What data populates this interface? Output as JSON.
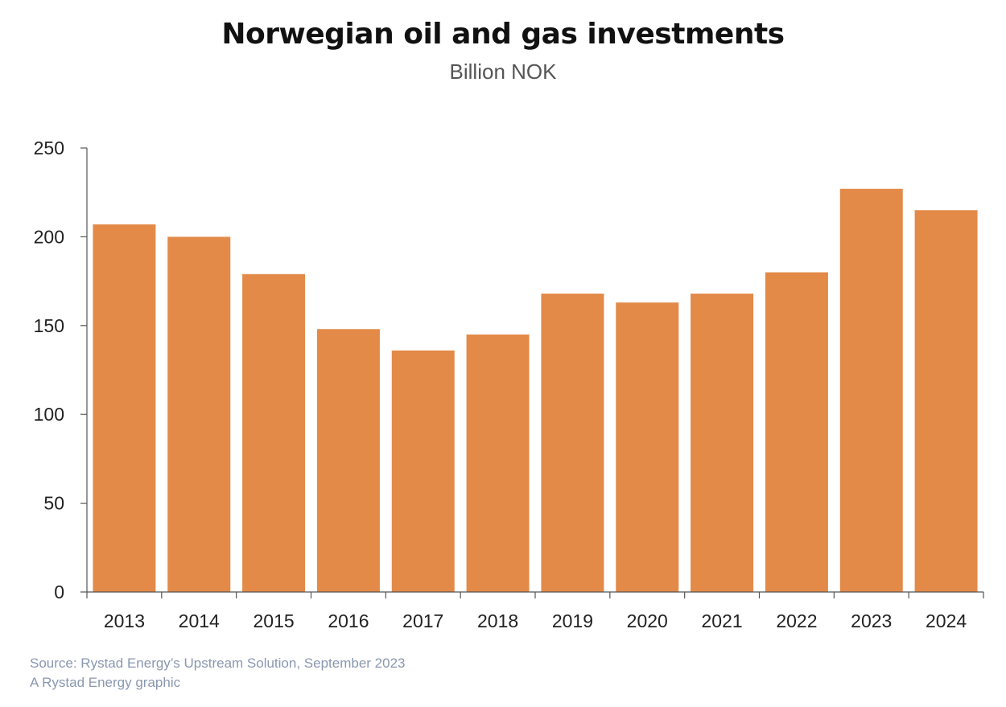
{
  "title": "Norwegian oil and gas investments",
  "subtitle": "Billion NOK",
  "footer": {
    "source": "Source: Rystad Energy’s Upstream Solution, September 2023",
    "credit": "A Rystad Energy graphic"
  },
  "colors": {
    "bar": "#e38a48",
    "axis": "#555555",
    "text": "#222222",
    "footer": "#8a97b0"
  },
  "chart_data": {
    "type": "bar",
    "title": "Norwegian oil and gas investments",
    "subtitle": "Billion NOK",
    "xlabel": "",
    "ylabel": "",
    "categories": [
      "2013",
      "2014",
      "2015",
      "2016",
      "2017",
      "2018",
      "2019",
      "2020",
      "2021",
      "2022",
      "2023",
      "2024"
    ],
    "values": [
      207,
      200,
      179,
      148,
      136,
      145,
      168,
      163,
      168,
      180,
      227,
      215
    ],
    "ylim": [
      0,
      250
    ],
    "yticks": [
      0,
      50,
      100,
      150,
      200,
      250
    ],
    "ytick_labels": [
      "0",
      "50",
      "100",
      "150",
      "200",
      "250"
    ],
    "grid": false,
    "legend": "none"
  }
}
